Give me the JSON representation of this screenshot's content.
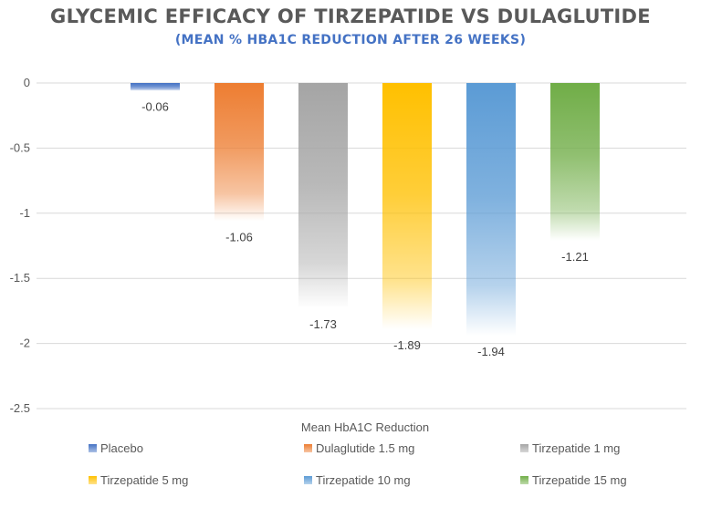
{
  "chart_data": {
    "type": "bar",
    "title": "GLYCEMIC EFFICACY OF TIRZEPATIDE VS DULAGLUTIDE",
    "subtitle": "(MEAN % HBA1C REDUCTION AFTER 26 WEEKS)",
    "xlabel": "Mean HbA1C Reduction",
    "ylabel": "",
    "ylim": [
      -2.5,
      0
    ],
    "yticks": [
      0,
      -0.5,
      -1,
      -1.5,
      -2,
      -2.5
    ],
    "ytick_labels": [
      "0",
      "-0.5",
      "-1",
      "-1.5",
      "-2",
      "-2.5"
    ],
    "grid": true,
    "legend_position": "bottom",
    "series": [
      {
        "name": "Placebo",
        "value": -0.06,
        "label": "-0.06",
        "color": "#4472C4"
      },
      {
        "name": "Dulaglutide 1.5 mg",
        "value": -1.06,
        "label": "-1.06",
        "color": "#ED7D31"
      },
      {
        "name": "Tirzepatide 1 mg",
        "value": -1.73,
        "label": "-1.73",
        "color": "#A5A5A5"
      },
      {
        "name": "Tirzepatide 5 mg",
        "value": -1.89,
        "label": "-1.89",
        "color": "#FFC000"
      },
      {
        "name": "Tirzepatide 10 mg",
        "value": -1.94,
        "label": "-1.94",
        "color": "#5B9BD5"
      },
      {
        "name": "Tirzepatide 15 mg",
        "value": -1.21,
        "label": "-1.21",
        "color": "#70AD47"
      }
    ]
  }
}
